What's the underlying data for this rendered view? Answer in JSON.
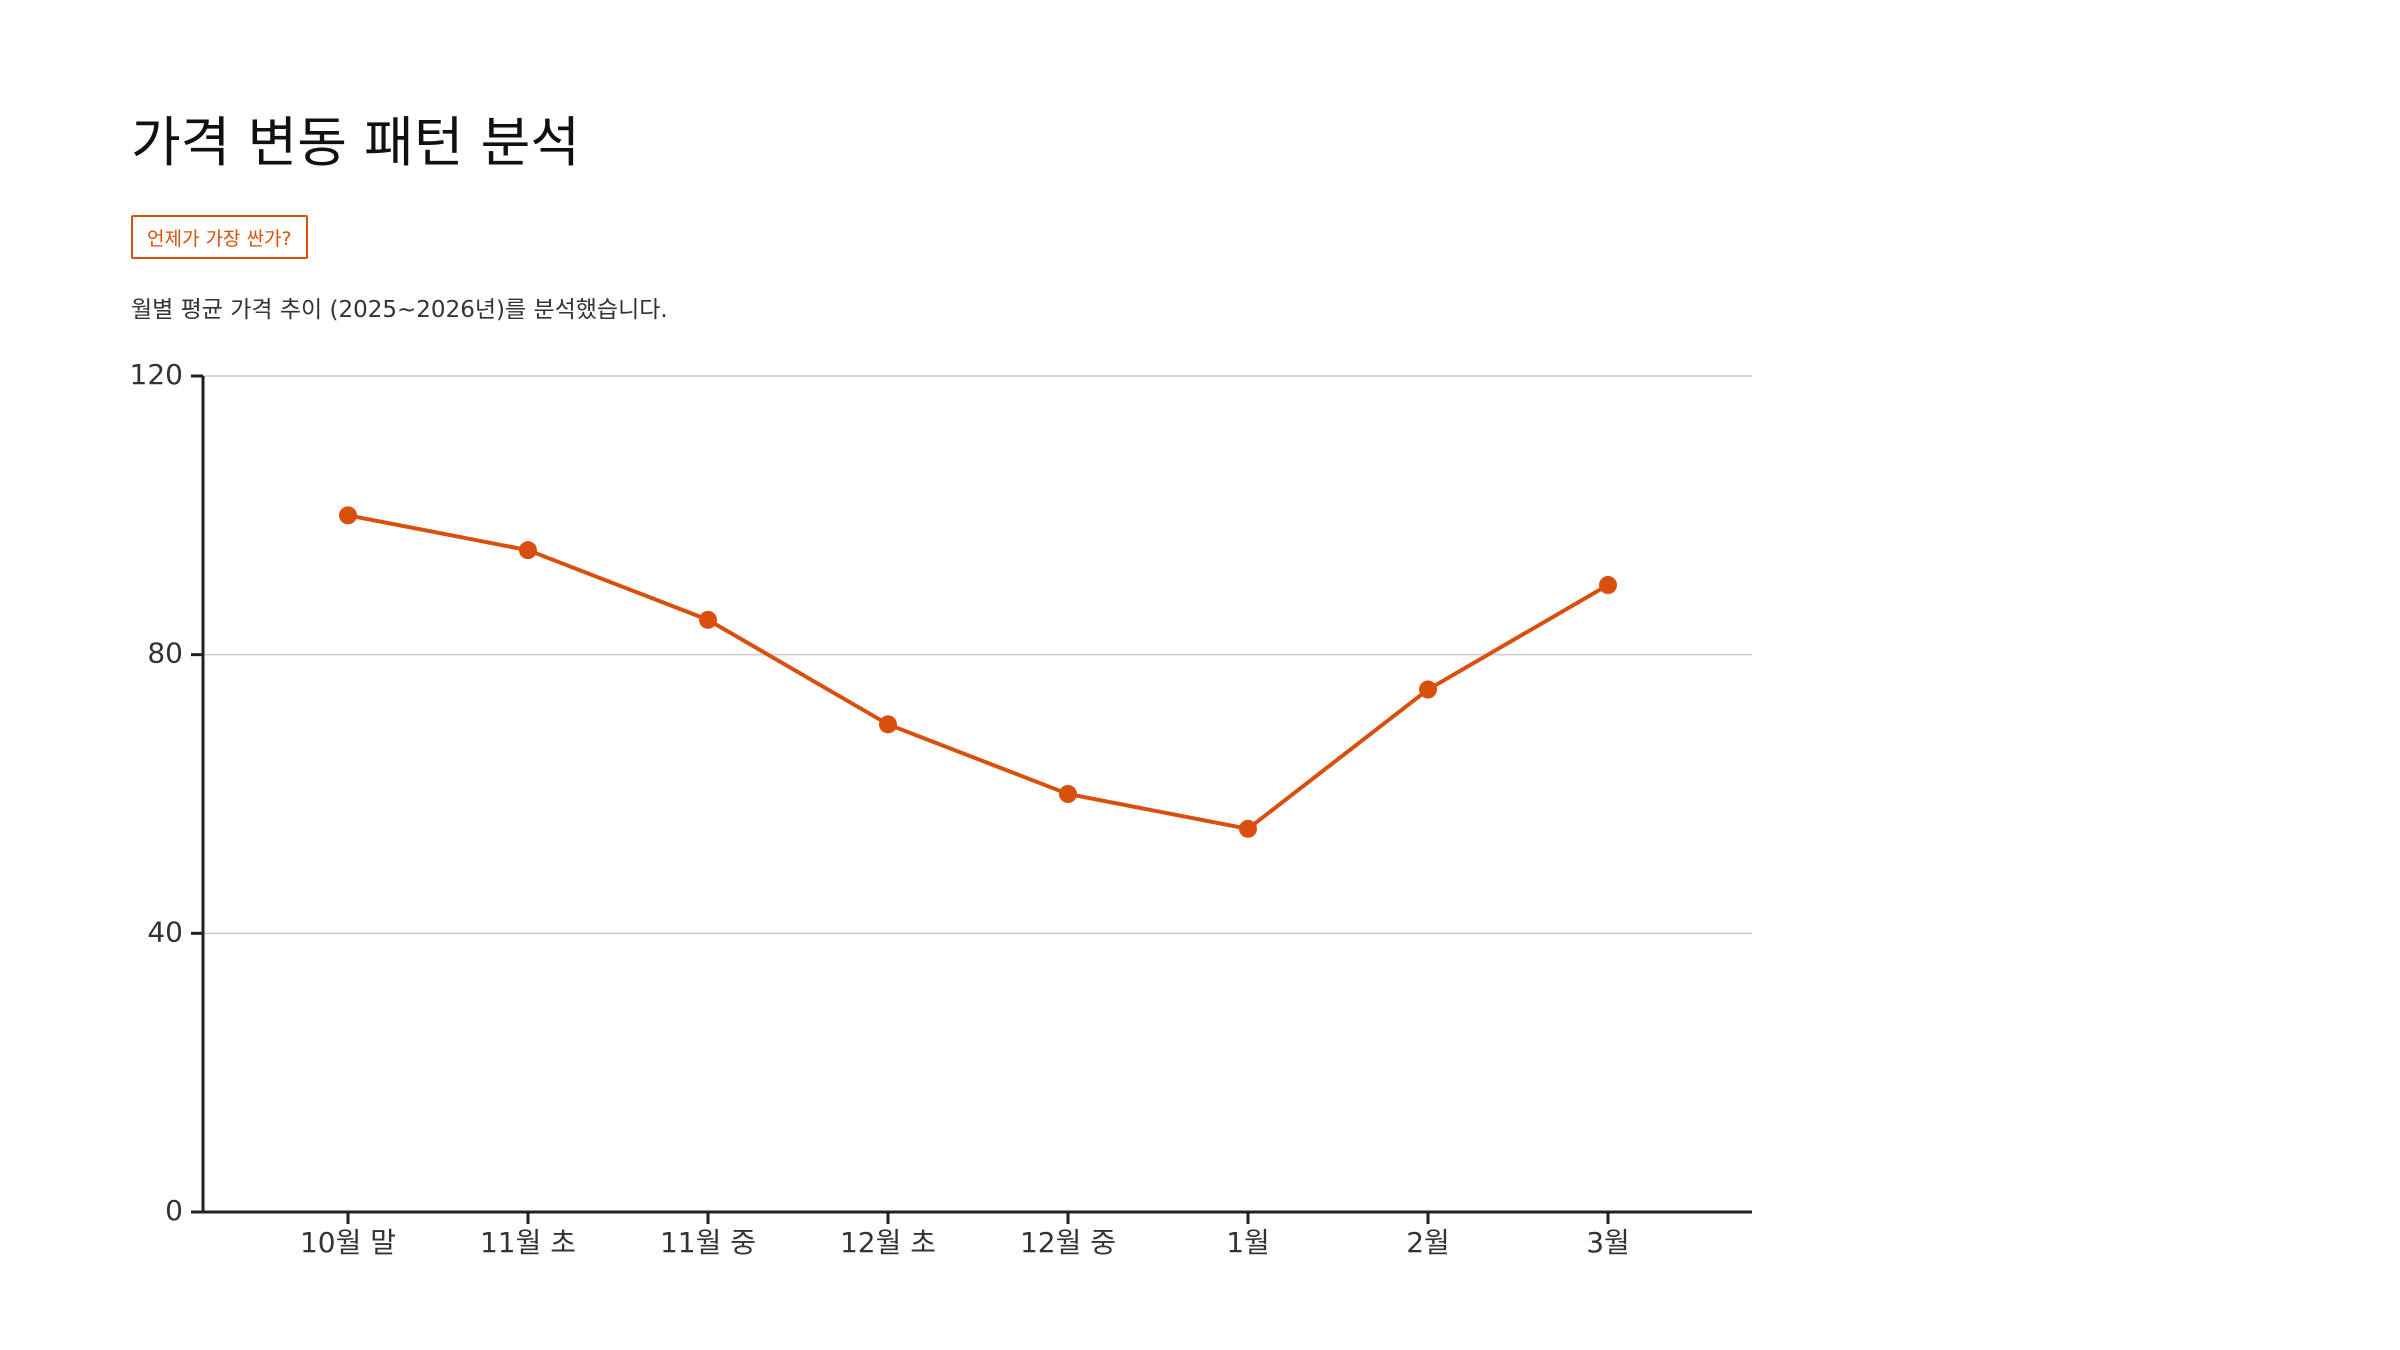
{
  "header": {
    "title": "가격 변동 패턴 분석",
    "badge": "언제가 가장 싼가?",
    "description": "월별 평균 가격 추이 (2025~2026년)를 분석했습니다."
  },
  "chart_data": {
    "type": "line",
    "categories": [
      "10월 말",
      "11월 초",
      "11월 중",
      "12월 초",
      "12월 중",
      "1월",
      "2월",
      "3월"
    ],
    "values": [
      100,
      95,
      85,
      70,
      60,
      55,
      75,
      90
    ],
    "color": "#d9500e",
    "ylim": [
      0,
      120
    ],
    "yticks": [
      0,
      40,
      80,
      120
    ],
    "grid": true
  }
}
